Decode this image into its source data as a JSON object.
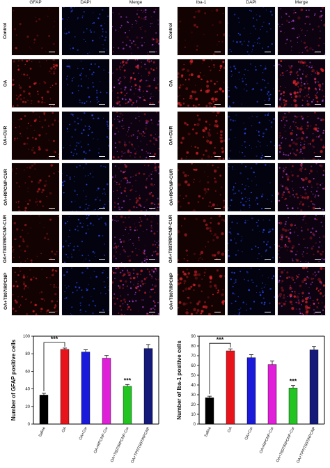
{
  "left_panel": {
    "columns": [
      "GFAP",
      "DAPI",
      "Merge"
    ],
    "rows": [
      "Control",
      "OA",
      "OA+CUR",
      "OA+RPCNP-CUR",
      "OA+T807/RPCNP-CUR",
      "OA+T807/RPCNP"
    ]
  },
  "right_panel": {
    "columns": [
      "Iba-1",
      "DAPI",
      "Merge"
    ],
    "rows": [
      "Control",
      "OA",
      "OA+CUR",
      "OA+RPCNP-CUR",
      "OA+T807/RPCNP-CUR",
      "OA+T807/RPCNP"
    ]
  },
  "colors": {
    "black": "#000000",
    "red": "#e8141b",
    "blue": "#1a1adb",
    "magenta": "#e01fd8",
    "green": "#22c422",
    "navy": "#151a7a"
  },
  "chart_data": [
    {
      "type": "bar",
      "categories": [
        "Saline",
        "OA",
        "OA+Cur",
        "OA+RPCNP-Cur",
        "OA+T807/RPCNP-Cur",
        "OA+TPP/T807/RPCNP"
      ],
      "values": [
        33,
        85,
        82,
        75,
        43,
        86
      ],
      "errors": [
        2,
        1.5,
        2.5,
        3,
        2,
        4.5
      ],
      "ylabel": "Number of GFAP positive cells",
      "ylim": [
        0,
        100
      ],
      "yticks": [
        0,
        20,
        40,
        60,
        80,
        100
      ],
      "significance": [
        {
          "text": "***",
          "bracket": [
            "Saline",
            "OA"
          ]
        },
        {
          "text": "***",
          "bar": "OA+T807/RPCNP-Cur"
        }
      ]
    },
    {
      "type": "bar",
      "categories": [
        "Saline",
        "OA",
        "OA+Cur",
        "OA+RPCNP-Cur",
        "OA+T807/RPCNP-Cur",
        "OA+TPP/T807/RPCNP"
      ],
      "values": [
        27,
        75,
        68,
        61,
        37,
        76
      ],
      "errors": [
        1.5,
        2,
        3,
        3.5,
        2.5,
        3.5
      ],
      "ylabel": "Number of Iba-1 positive cells",
      "ylim": [
        0,
        90
      ],
      "yticks": [
        0,
        10,
        20,
        30,
        40,
        50,
        60,
        70,
        80,
        90
      ],
      "significance": [
        {
          "text": "***",
          "bracket": [
            "Saline",
            "OA"
          ]
        },
        {
          "text": "***",
          "bar": "OA+T807/RPCNP-Cur"
        }
      ]
    }
  ]
}
